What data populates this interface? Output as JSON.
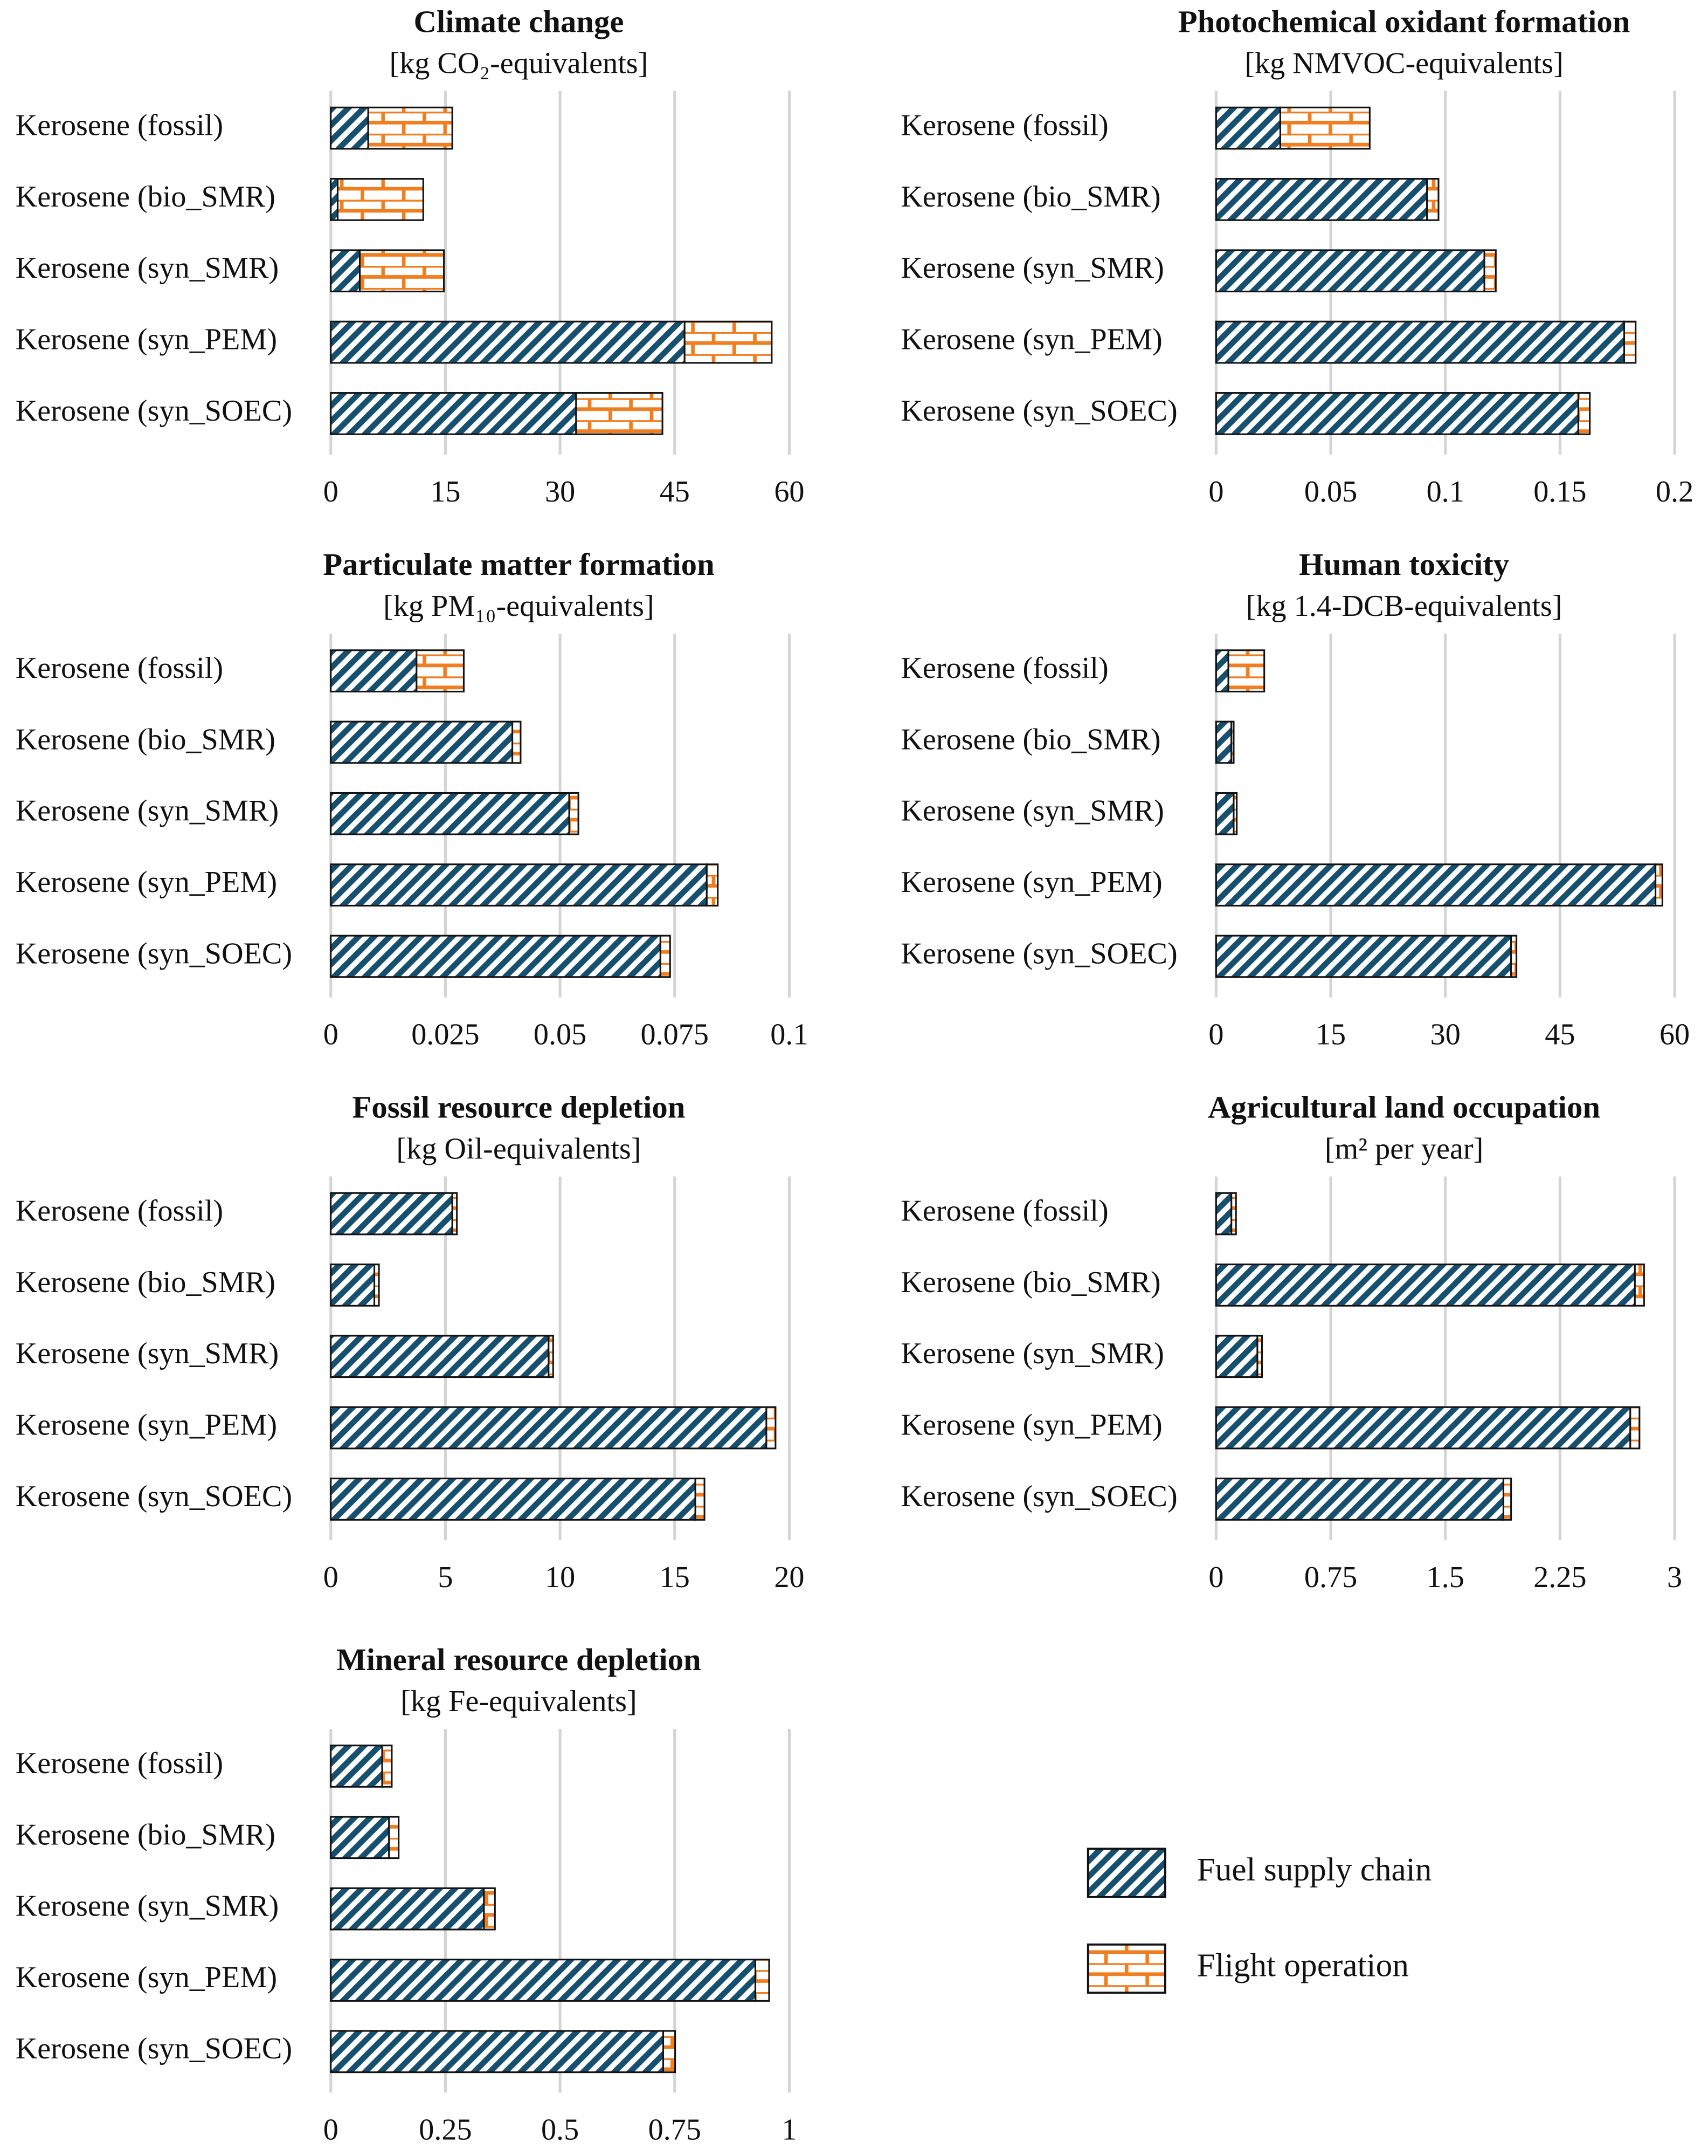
{
  "chart_data": [
    {
      "type": "bar",
      "orientation": "horizontal",
      "stacked": true,
      "title": "Climate change",
      "subtitle": "[kg CO₂-equivalents]",
      "categories": [
        "Kerosene (fossil)",
        "Kerosene (bio_SMR)",
        "Kerosene (syn_SMR)",
        "Kerosene (syn_PEM)",
        "Kerosene (syn_SOEC)"
      ],
      "series": [
        {
          "name": "Fuel supply chain",
          "color": "#17506e",
          "hatch": "diagonal",
          "values": [
            4.9,
            0.9,
            3.8,
            46.3,
            32.1
          ]
        },
        {
          "name": "Flight operation",
          "color": "#f07d1e",
          "hatch": "brick",
          "values": [
            11.0,
            11.2,
            11.0,
            11.4,
            11.3
          ]
        }
      ],
      "xlim": [
        0,
        60
      ],
      "xticks": [
        0,
        15,
        30,
        45,
        60
      ],
      "grid": true
    },
    {
      "type": "bar",
      "orientation": "horizontal",
      "stacked": true,
      "title": "Photochemical oxidant formation",
      "subtitle": "[kg NMVOC-equivalents]",
      "categories": [
        "Kerosene (fossil)",
        "Kerosene (bio_SMR)",
        "Kerosene (syn_SMR)",
        "Kerosene (syn_PEM)",
        "Kerosene (syn_SOEC)"
      ],
      "series": [
        {
          "name": "Fuel supply chain",
          "color": "#17506e",
          "hatch": "diagonal",
          "values": [
            0.028,
            0.092,
            0.117,
            0.178,
            0.158
          ]
        },
        {
          "name": "Flight operation",
          "color": "#f07d1e",
          "hatch": "brick",
          "values": [
            0.039,
            0.005,
            0.005,
            0.005,
            0.005
          ]
        }
      ],
      "xlim": [
        0,
        0.2
      ],
      "xticks": [
        0,
        0.05,
        0.1,
        0.15,
        0.2
      ],
      "grid": true
    },
    {
      "type": "bar",
      "orientation": "horizontal",
      "stacked": true,
      "title": "Particulate matter formation",
      "subtitle": "[kg PM₁₀-equivalents]",
      "categories": [
        "Kerosene (fossil)",
        "Kerosene (bio_SMR)",
        "Kerosene (syn_SMR)",
        "Kerosene (syn_PEM)",
        "Kerosene (syn_SOEC)"
      ],
      "series": [
        {
          "name": "Fuel supply chain",
          "color": "#17506e",
          "hatch": "diagonal",
          "values": [
            0.0187,
            0.0396,
            0.052,
            0.082,
            0.0719
          ]
        },
        {
          "name": "Flight operation",
          "color": "#f07d1e",
          "hatch": "brick",
          "values": [
            0.0103,
            0.0018,
            0.002,
            0.0024,
            0.0021
          ]
        }
      ],
      "xlim": [
        0,
        0.1
      ],
      "xticks": [
        0,
        0.025,
        0.05,
        0.075,
        0.1
      ],
      "grid": true
    },
    {
      "type": "bar",
      "orientation": "horizontal",
      "stacked": true,
      "title": "Human toxicity",
      "subtitle": "[kg 1.4-DCB-equivalents]",
      "categories": [
        "Kerosene (fossil)",
        "Kerosene (bio_SMR)",
        "Kerosene (syn_SMR)",
        "Kerosene (syn_PEM)",
        "Kerosene (syn_SOEC)"
      ],
      "series": [
        {
          "name": "Fuel supply chain",
          "color": "#17506e",
          "hatch": "diagonal",
          "values": [
            1.6,
            2.0,
            2.3,
            57.5,
            38.6
          ]
        },
        {
          "name": "Flight operation",
          "color": "#f07d1e",
          "hatch": "brick",
          "values": [
            4.7,
            0.3,
            0.4,
            0.9,
            0.7
          ]
        }
      ],
      "xlim": [
        0,
        60
      ],
      "xticks": [
        0,
        15,
        30,
        45,
        60
      ],
      "grid": true
    },
    {
      "type": "bar",
      "orientation": "horizontal",
      "stacked": true,
      "title": "Fossil resource depletion",
      "subtitle": "[kg Oil-equivalents]",
      "categories": [
        "Kerosene (fossil)",
        "Kerosene (bio_SMR)",
        "Kerosene (syn_SMR)",
        "Kerosene (syn_PEM)",
        "Kerosene (syn_SOEC)"
      ],
      "series": [
        {
          "name": "Fuel supply chain",
          "color": "#17506e",
          "hatch": "diagonal",
          "values": [
            5.3,
            1.9,
            9.5,
            19.0,
            15.9
          ]
        },
        {
          "name": "Flight operation",
          "color": "#f07d1e",
          "hatch": "brick",
          "values": [
            0.2,
            0.2,
            0.2,
            0.4,
            0.4
          ]
        }
      ],
      "xlim": [
        0,
        20
      ],
      "xticks": [
        0,
        5,
        10,
        15,
        20
      ],
      "grid": true
    },
    {
      "type": "bar",
      "orientation": "horizontal",
      "stacked": true,
      "title": "Agricultural land occupation",
      "subtitle": "[m² per year]",
      "categories": [
        "Kerosene (fossil)",
        "Kerosene (bio_SMR)",
        "Kerosene (syn_SMR)",
        "Kerosene (syn_PEM)",
        "Kerosene (syn_SOEC)"
      ],
      "series": [
        {
          "name": "Fuel supply chain",
          "color": "#17506e",
          "hatch": "diagonal",
          "values": [
            0.1,
            2.74,
            0.27,
            2.71,
            1.88
          ]
        },
        {
          "name": "Flight operation",
          "color": "#f07d1e",
          "hatch": "brick",
          "values": [
            0.03,
            0.06,
            0.03,
            0.06,
            0.05
          ]
        }
      ],
      "xlim": [
        0,
        3
      ],
      "xticks": [
        0,
        0.75,
        1.5,
        2.25,
        3
      ],
      "grid": true
    },
    {
      "type": "bar",
      "orientation": "horizontal",
      "stacked": true,
      "title": "Mineral resource depletion",
      "subtitle": "[kg Fe-equivalents]",
      "categories": [
        "Kerosene (fossil)",
        "Kerosene (bio_SMR)",
        "Kerosene (syn_SMR)",
        "Kerosene (syn_PEM)",
        "Kerosene (syn_SOEC)"
      ],
      "series": [
        {
          "name": "Fuel supply chain",
          "color": "#17506e",
          "hatch": "diagonal",
          "values": [
            0.112,
            0.127,
            0.334,
            0.926,
            0.725
          ]
        },
        {
          "name": "Flight operation",
          "color": "#f07d1e",
          "hatch": "brick",
          "values": [
            0.021,
            0.021,
            0.024,
            0.03,
            0.026
          ]
        }
      ],
      "xlim": [
        0,
        1
      ],
      "xticks": [
        0,
        0.25,
        0.5,
        0.75,
        1
      ],
      "grid": true
    }
  ]
}
